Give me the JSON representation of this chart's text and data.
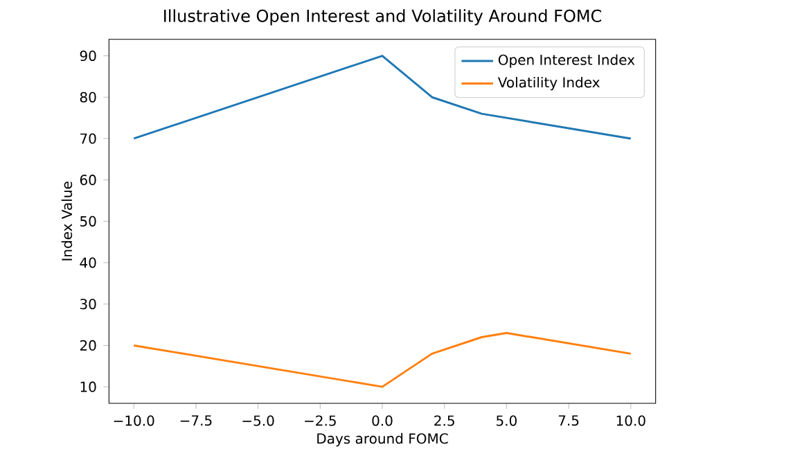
{
  "chart_data": {
    "type": "line",
    "title": "Illustrative Open Interest and Volatility Around FOMC",
    "xlabel": "Days around FOMC",
    "ylabel": "Index Value",
    "series": [
      {
        "name": "Open Interest Index",
        "color": "#1f77b4",
        "x": [
          -10,
          0,
          2,
          4,
          10
        ],
        "values": [
          70,
          90,
          80,
          76,
          70
        ]
      },
      {
        "name": "Volatility Index",
        "color": "#ff7f0e",
        "x": [
          -10,
          0,
          2,
          4,
          5,
          10
        ],
        "values": [
          20,
          10,
          18,
          22,
          23,
          18
        ]
      }
    ],
    "xlim": [
      -11,
      11
    ],
    "ylim": [
      6,
      94
    ],
    "xticks": [
      {
        "value": -10,
        "label": "−10.0"
      },
      {
        "value": -7.5,
        "label": "−7.5"
      },
      {
        "value": -5,
        "label": "−5.0"
      },
      {
        "value": -2.5,
        "label": "−2.5"
      },
      {
        "value": 0,
        "label": "0.0"
      },
      {
        "value": 2.5,
        "label": "2.5"
      },
      {
        "value": 5,
        "label": "5.0"
      },
      {
        "value": 7.5,
        "label": "7.5"
      },
      {
        "value": 10,
        "label": "10.0"
      }
    ],
    "yticks": [
      10,
      20,
      30,
      40,
      50,
      60,
      70,
      80,
      90
    ],
    "legend": "top right",
    "grid": false,
    "marker": "none",
    "line_style": "solid"
  }
}
